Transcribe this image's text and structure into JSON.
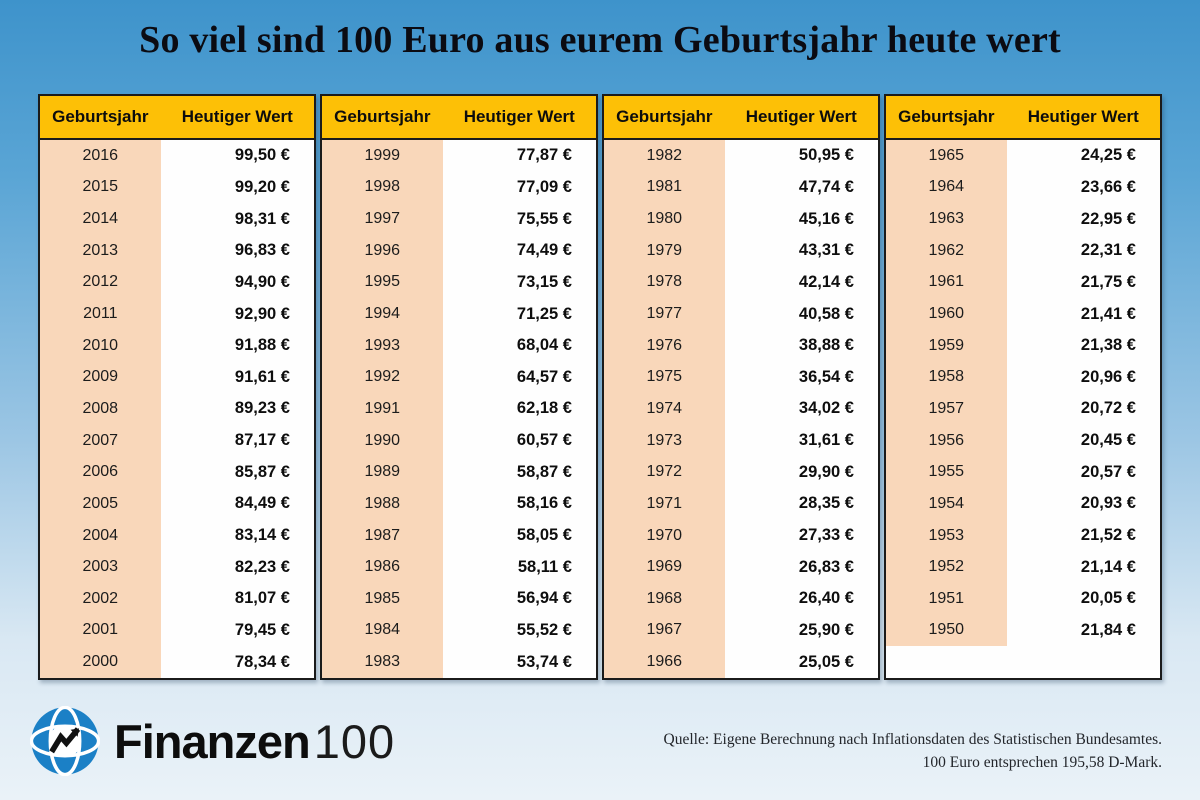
{
  "title": "So viel sind 100 Euro aus eurem Geburtsjahr heute wert",
  "chart_data": {
    "type": "table",
    "title": "So viel sind 100 Euro aus eurem Geburtsjahr heute wert",
    "column_headers": [
      "Geburtsjahr",
      "Heutiger Wert"
    ],
    "tables": [
      {
        "rows": [
          [
            "2016",
            "99,50 €"
          ],
          [
            "2015",
            "99,20 €"
          ],
          [
            "2014",
            "98,31 €"
          ],
          [
            "2013",
            "96,83 €"
          ],
          [
            "2012",
            "94,90 €"
          ],
          [
            "2011",
            "92,90 €"
          ],
          [
            "2010",
            "91,88 €"
          ],
          [
            "2009",
            "91,61 €"
          ],
          [
            "2008",
            "89,23 €"
          ],
          [
            "2007",
            "87,17 €"
          ],
          [
            "2006",
            "85,87 €"
          ],
          [
            "2005",
            "84,49 €"
          ],
          [
            "2004",
            "83,14 €"
          ],
          [
            "2003",
            "82,23 €"
          ],
          [
            "2002",
            "81,07 €"
          ],
          [
            "2001",
            "79,45 €"
          ],
          [
            "2000",
            "78,34 €"
          ]
        ]
      },
      {
        "rows": [
          [
            "1999",
            "77,87 €"
          ],
          [
            "1998",
            "77,09 €"
          ],
          [
            "1997",
            "75,55 €"
          ],
          [
            "1996",
            "74,49 €"
          ],
          [
            "1995",
            "73,15 €"
          ],
          [
            "1994",
            "71,25 €"
          ],
          [
            "1993",
            "68,04 €"
          ],
          [
            "1992",
            "64,57 €"
          ],
          [
            "1991",
            "62,18 €"
          ],
          [
            "1990",
            "60,57 €"
          ],
          [
            "1989",
            "58,87 €"
          ],
          [
            "1988",
            "58,16 €"
          ],
          [
            "1987",
            "58,05 €"
          ],
          [
            "1986",
            "58,11 €"
          ],
          [
            "1985",
            "56,94 €"
          ],
          [
            "1984",
            "55,52 €"
          ],
          [
            "1983",
            "53,74 €"
          ]
        ]
      },
      {
        "rows": [
          [
            "1982",
            "50,95 €"
          ],
          [
            "1981",
            "47,74 €"
          ],
          [
            "1980",
            "45,16 €"
          ],
          [
            "1979",
            "43,31 €"
          ],
          [
            "1978",
            "42,14 €"
          ],
          [
            "1977",
            "40,58 €"
          ],
          [
            "1976",
            "38,88 €"
          ],
          [
            "1975",
            "36,54 €"
          ],
          [
            "1974",
            "34,02 €"
          ],
          [
            "1973",
            "31,61 €"
          ],
          [
            "1972",
            "29,90 €"
          ],
          [
            "1971",
            "28,35 €"
          ],
          [
            "1970",
            "27,33 €"
          ],
          [
            "1969",
            "26,83 €"
          ],
          [
            "1968",
            "26,40 €"
          ],
          [
            "1967",
            "25,90 €"
          ],
          [
            "1966",
            "25,05 €"
          ]
        ]
      },
      {
        "rows": [
          [
            "1965",
            "24,25 €"
          ],
          [
            "1964",
            "23,66 €"
          ],
          [
            "1963",
            "22,95 €"
          ],
          [
            "1962",
            "22,31 €"
          ],
          [
            "1961",
            "21,75 €"
          ],
          [
            "1960",
            "21,41 €"
          ],
          [
            "1959",
            "21,38 €"
          ],
          [
            "1958",
            "20,96 €"
          ],
          [
            "1957",
            "20,72 €"
          ],
          [
            "1956",
            "20,45 €"
          ],
          [
            "1955",
            "20,57 €"
          ],
          [
            "1954",
            "20,93 €"
          ],
          [
            "1953",
            "21,52 €"
          ],
          [
            "1952",
            "21,14 €"
          ],
          [
            "1951",
            "20,05 €"
          ],
          [
            "1950",
            "21,84 €"
          ]
        ]
      }
    ]
  },
  "footer": {
    "brand_text": "Finanzen",
    "brand_number": "100",
    "source_line1": "Quelle: Eigene Berechnung nach Inflationsdaten des Statistischen Bundesamtes.",
    "source_line2": "100 Euro entsprechen 195,58 D-Mark."
  },
  "colors": {
    "header_bg": "#FDC006",
    "year_column_bg": "#F9D7BA",
    "table_border": "#1b1b1b",
    "background_top": "#3E93CB",
    "background_bottom": "#EAF2F8",
    "logo_blue": "#1B80C6"
  }
}
